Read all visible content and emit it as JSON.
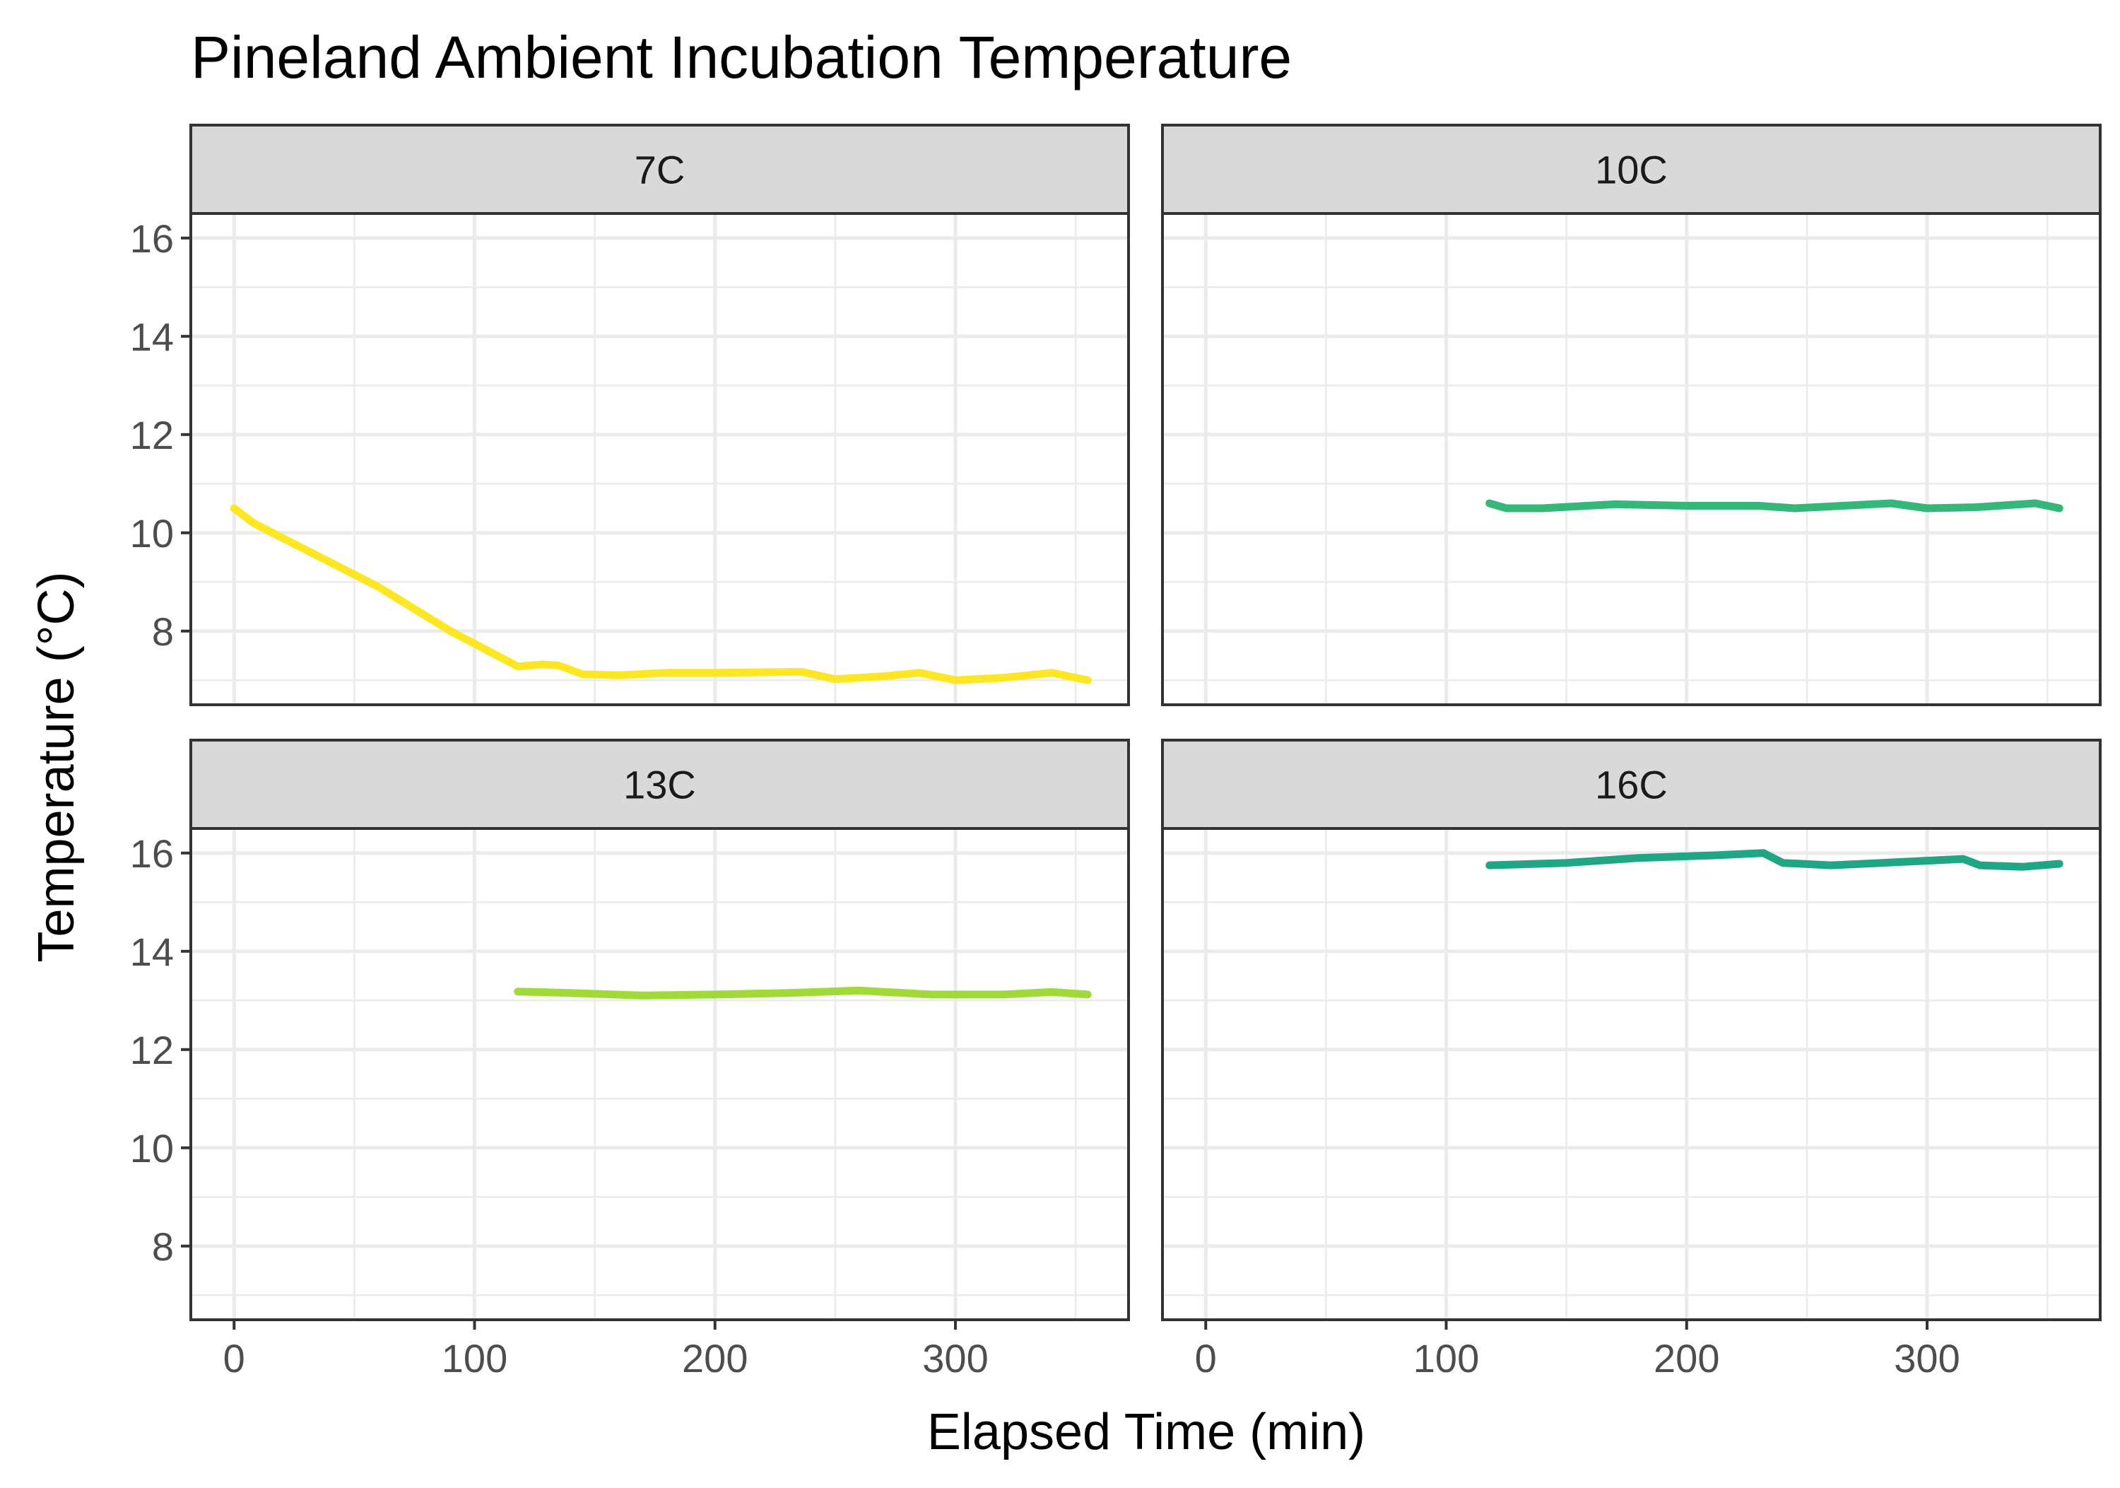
{
  "chart_data": {
    "type": "line",
    "title": "Pineland Ambient Incubation Temperature",
    "xlabel": "Elapsed Time (min)",
    "ylabel": "Temperature (°C)",
    "xlim": [
      -18,
      372
    ],
    "ylim": [
      6.5,
      16.5
    ],
    "x_ticks": [
      0,
      100,
      200,
      300
    ],
    "y_ticks": [
      8,
      10,
      12,
      14,
      16
    ],
    "grid": true,
    "legend": "none",
    "panels": [
      {
        "name": "7C",
        "color": "#FDE725",
        "points": [
          [
            0,
            10.5
          ],
          [
            8,
            10.2
          ],
          [
            30,
            9.65
          ],
          [
            60,
            8.9
          ],
          [
            90,
            8.0
          ],
          [
            118,
            7.28
          ],
          [
            128,
            7.32
          ],
          [
            135,
            7.3
          ],
          [
            145,
            7.12
          ],
          [
            160,
            7.1
          ],
          [
            180,
            7.15
          ],
          [
            200,
            7.15
          ],
          [
            236,
            7.17
          ],
          [
            250,
            7.02
          ],
          [
            270,
            7.08
          ],
          [
            285,
            7.15
          ],
          [
            300,
            7.0
          ],
          [
            320,
            7.05
          ],
          [
            340,
            7.15
          ],
          [
            355,
            7.0
          ]
        ]
      },
      {
        "name": "10C",
        "color": "#35B779",
        "points": [
          [
            118,
            10.6
          ],
          [
            125,
            10.5
          ],
          [
            140,
            10.5
          ],
          [
            170,
            10.58
          ],
          [
            200,
            10.55
          ],
          [
            230,
            10.55
          ],
          [
            245,
            10.5
          ],
          [
            265,
            10.55
          ],
          [
            285,
            10.6
          ],
          [
            300,
            10.5
          ],
          [
            320,
            10.52
          ],
          [
            345,
            10.6
          ],
          [
            355,
            10.5
          ]
        ]
      },
      {
        "name": "13C",
        "color": "#A0DA39",
        "points": [
          [
            118,
            13.18
          ],
          [
            140,
            13.15
          ],
          [
            170,
            13.1
          ],
          [
            200,
            13.12
          ],
          [
            230,
            13.15
          ],
          [
            260,
            13.2
          ],
          [
            290,
            13.12
          ],
          [
            320,
            13.12
          ],
          [
            340,
            13.17
          ],
          [
            355,
            13.12
          ]
        ]
      },
      {
        "name": "16C",
        "color": "#21A685",
        "points": [
          [
            118,
            15.75
          ],
          [
            150,
            15.8
          ],
          [
            180,
            15.9
          ],
          [
            210,
            15.95
          ],
          [
            232,
            16.0
          ],
          [
            240,
            15.8
          ],
          [
            260,
            15.75
          ],
          [
            290,
            15.82
          ],
          [
            315,
            15.88
          ],
          [
            322,
            15.75
          ],
          [
            340,
            15.72
          ],
          [
            355,
            15.78
          ]
        ]
      }
    ]
  }
}
